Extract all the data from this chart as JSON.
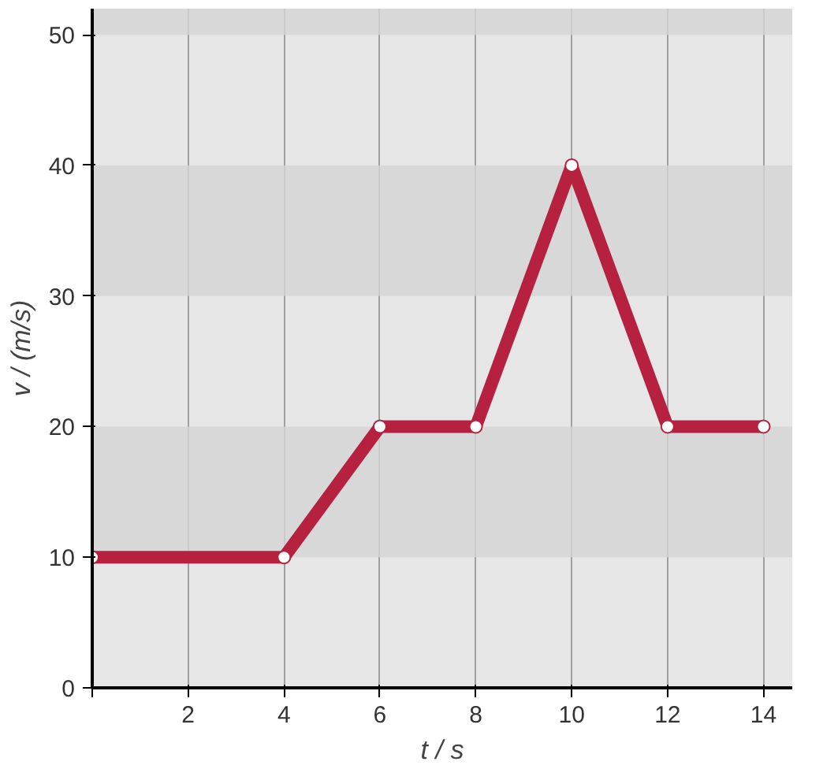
{
  "chart_data": {
    "type": "line",
    "xlabel": "t / s",
    "ylabel": "v / (m/s)",
    "x": [
      0,
      4,
      6,
      8,
      10,
      12,
      14
    ],
    "series": [
      {
        "color": "#b5213f",
        "values": [
          10,
          10,
          20,
          20,
          40,
          20,
          20
        ]
      }
    ],
    "xlim": [
      0,
      14.6
    ],
    "ylim": [
      0,
      52
    ],
    "xticks": [
      {
        "value": 0,
        "label": null
      },
      2,
      4,
      6,
      8,
      10,
      12,
      14
    ],
    "yticks": [
      0,
      10,
      20,
      30,
      40,
      50
    ],
    "grid": "x",
    "marker": "circle",
    "line_style": "solid"
  }
}
